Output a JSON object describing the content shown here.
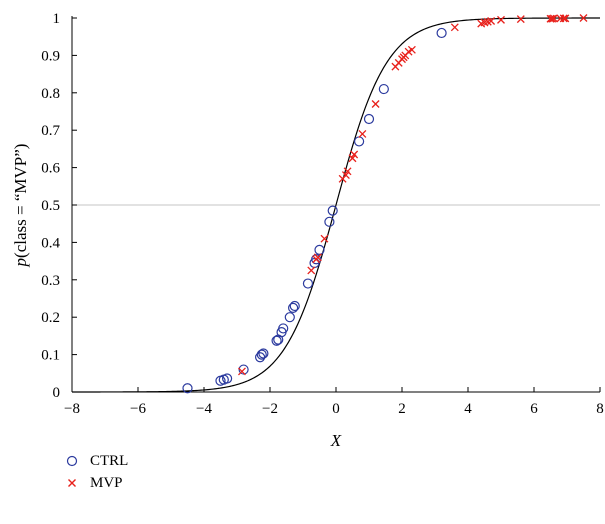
{
  "chart_data": {
    "type": "scatter",
    "xlabel": "X",
    "ylabel_prefix": "p",
    "ylabel_rest": "(class = “MVP”)",
    "xlim": [
      -8,
      8
    ],
    "ylim": [
      0,
      1
    ],
    "xticks": [
      -8,
      -6,
      -4,
      -2,
      0,
      2,
      4,
      6,
      8
    ],
    "yticks": [
      0,
      0.1,
      0.2,
      0.3,
      0.4,
      0.5,
      0.6,
      0.7,
      0.8,
      0.9,
      1
    ],
    "ytick_labels": [
      "0",
      "0.1",
      "0.2",
      "0.3",
      "0.4",
      "0.5",
      "0.6",
      "0.7",
      "0.8",
      "0.9",
      "1"
    ],
    "xtick_labels": [
      "−8",
      "−6",
      "−4",
      "−2",
      "0",
      "2",
      "4",
      "6",
      "8"
    ],
    "reference_line_y": 0.5,
    "curve": {
      "type": "logistic",
      "slope": 1.3,
      "intercept": 0
    },
    "legend_position": "bottom-left",
    "series": [
      {
        "name": "CTRL",
        "marker": "circle",
        "color": "#2b3a9e",
        "x": [
          -4.5,
          -3.5,
          -3.4,
          -3.3,
          -2.8,
          -2.3,
          -2.25,
          -2.2,
          -1.8,
          -1.75,
          -1.65,
          -1.6,
          -1.4,
          -1.3,
          -1.25,
          -0.85,
          -0.65,
          -0.6,
          -0.5,
          -0.2,
          -0.1,
          0.7,
          1.0,
          1.45,
          3.2
        ],
        "y": [
          0.01,
          0.03,
          0.033,
          0.036,
          0.06,
          0.093,
          0.1,
          0.103,
          0.137,
          0.14,
          0.16,
          0.17,
          0.2,
          0.225,
          0.23,
          0.29,
          0.345,
          0.355,
          0.38,
          0.455,
          0.485,
          0.67,
          0.73,
          0.81,
          0.96
        ]
      },
      {
        "name": "MVP",
        "marker": "x",
        "color": "#e8211c",
        "x": [
          -2.85,
          -0.75,
          -0.6,
          -0.55,
          -0.35,
          0.2,
          0.3,
          0.35,
          0.5,
          0.55,
          0.8,
          1.2,
          1.8,
          1.9,
          2.0,
          2.05,
          2.1,
          2.2,
          2.3,
          3.6,
          4.4,
          4.5,
          4.6,
          4.7,
          5.0,
          5.6,
          6.5,
          6.55,
          6.6,
          6.8,
          6.9,
          6.95,
          7.5
        ],
        "y": [
          0.055,
          0.325,
          0.355,
          0.36,
          0.41,
          0.57,
          0.58,
          0.59,
          0.625,
          0.635,
          0.69,
          0.77,
          0.87,
          0.88,
          0.89,
          0.895,
          0.9,
          0.91,
          0.915,
          0.975,
          0.985,
          0.988,
          0.99,
          0.992,
          0.995,
          0.997,
          0.998,
          0.998,
          0.999,
          0.999,
          0.999,
          0.999,
          1.0
        ]
      }
    ]
  }
}
